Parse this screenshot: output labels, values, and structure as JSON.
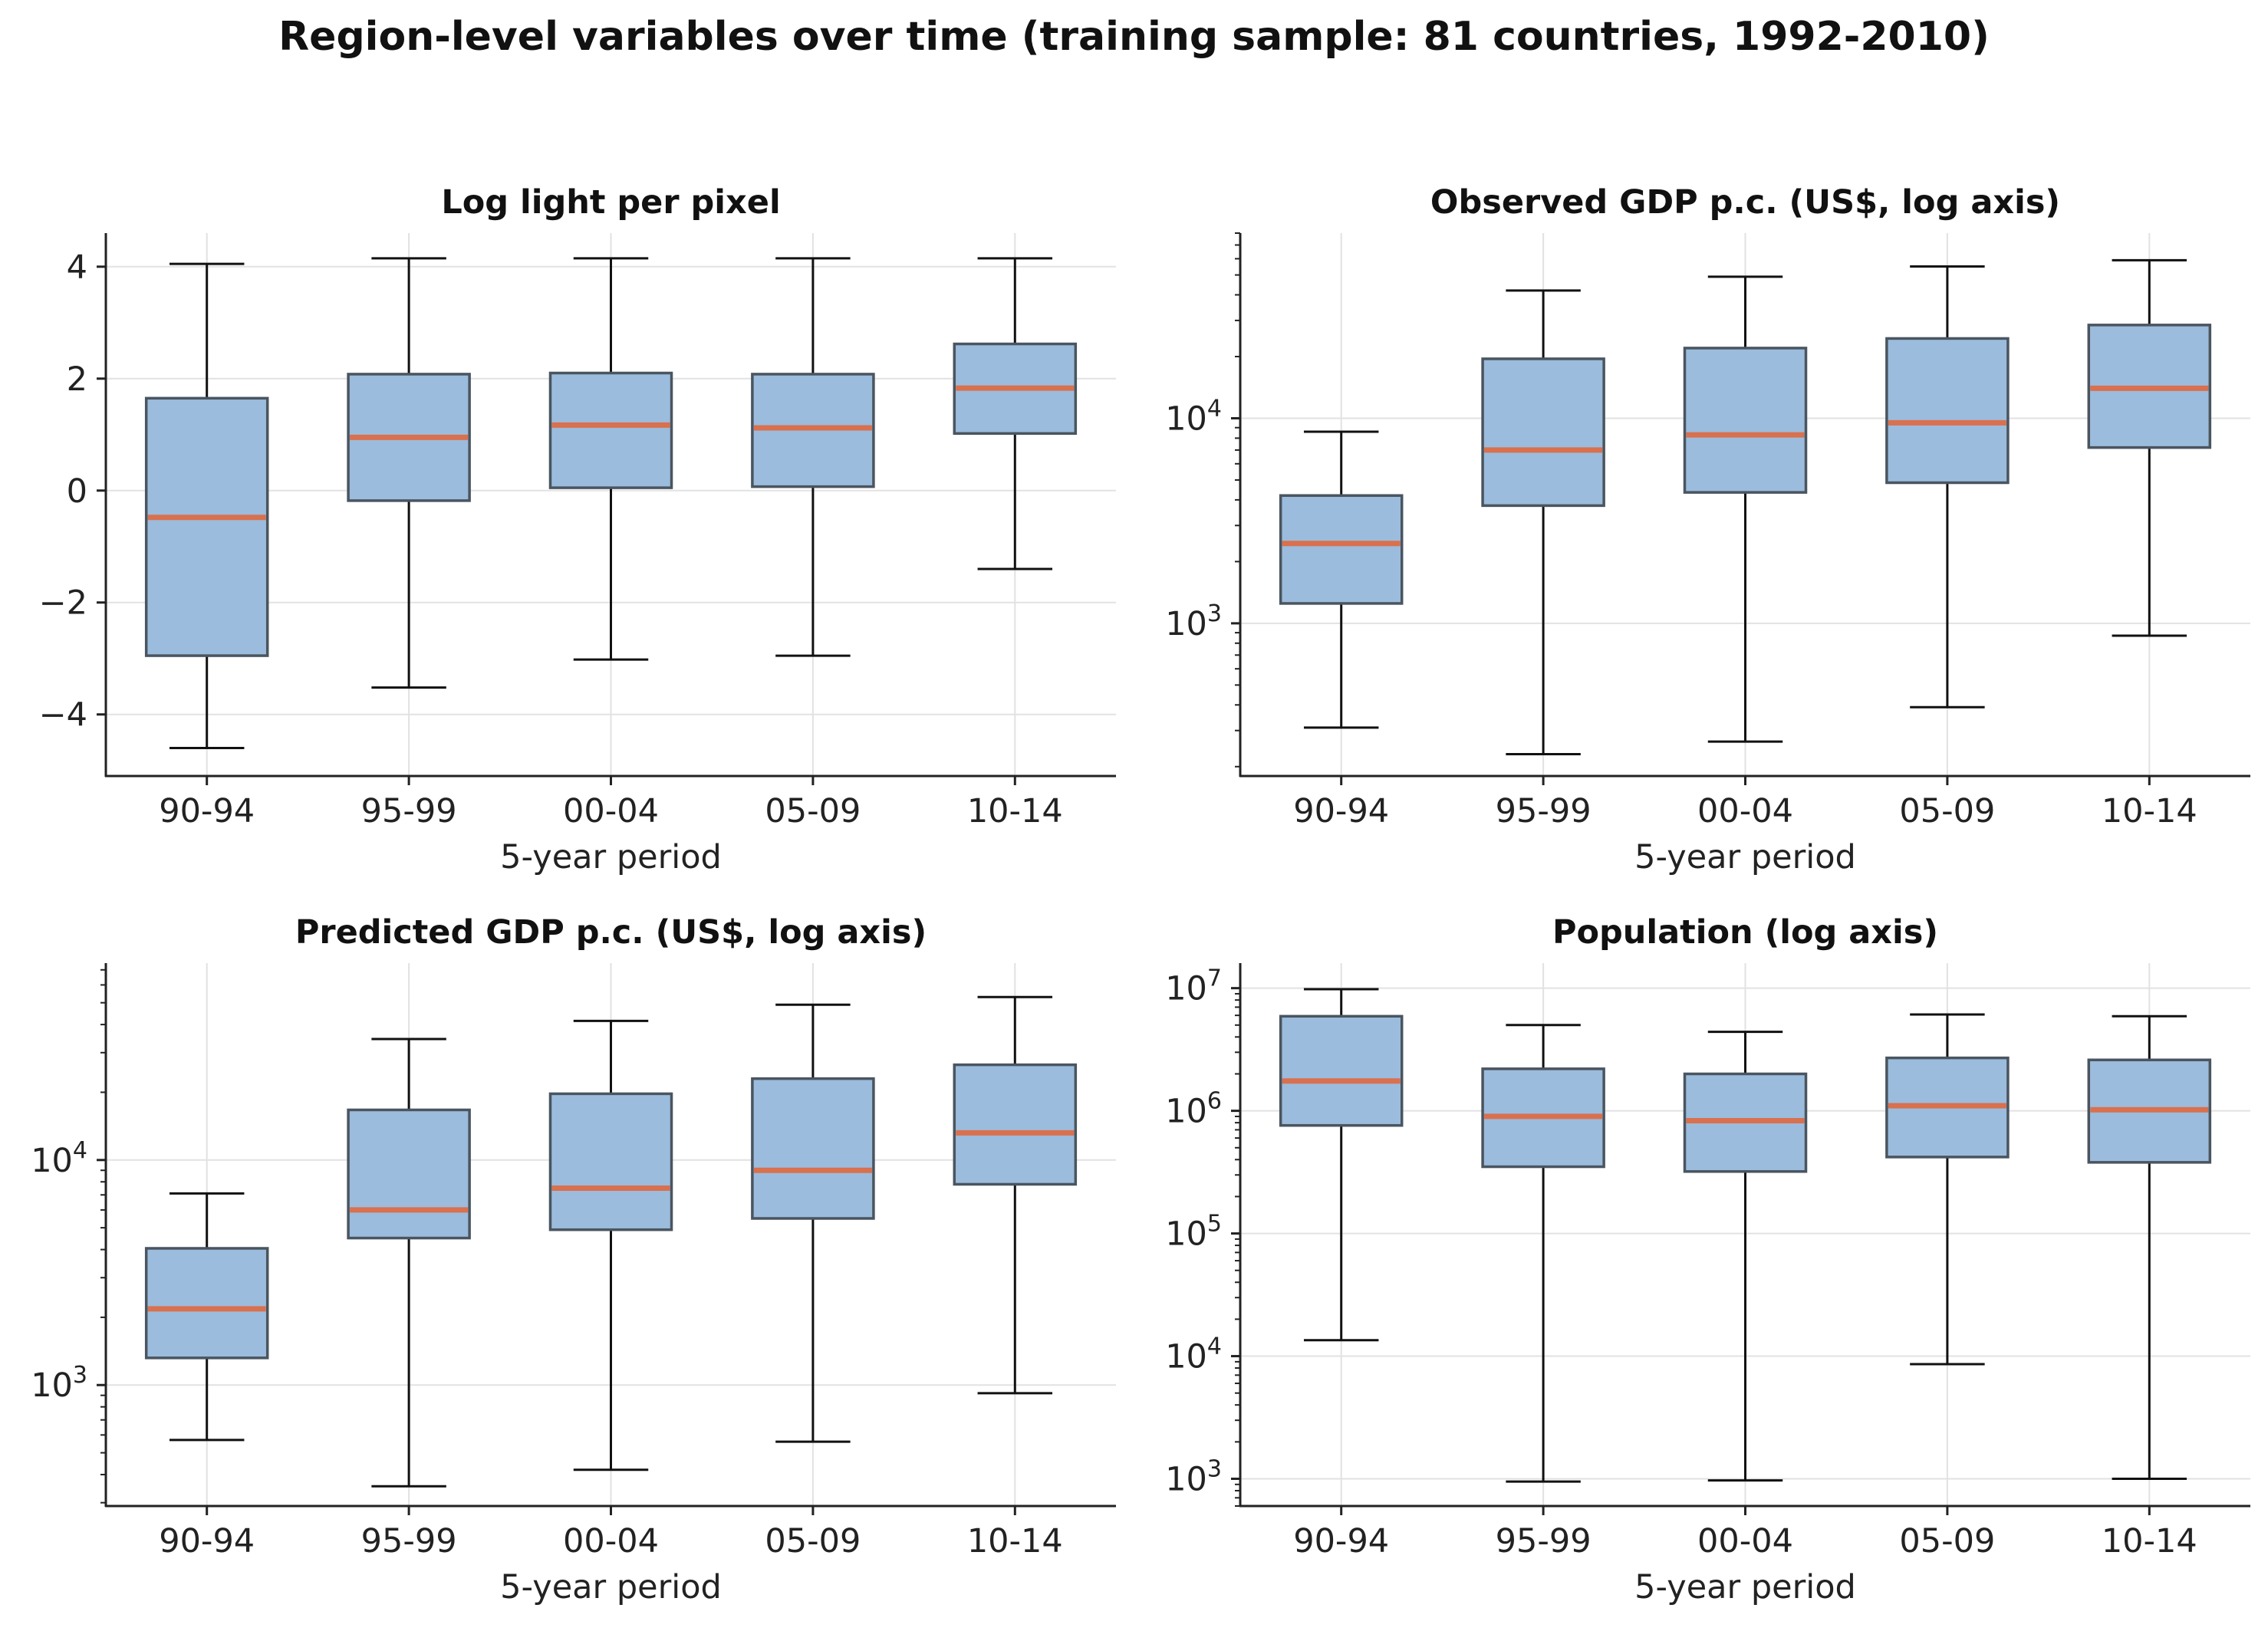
{
  "figure_title": "Region-level variables over time (training sample: 81 countries, 1992-2010)",
  "colors": {
    "box_fill": "#9bbcdc",
    "box_edge": "#4a5560",
    "median": "#d9704e",
    "whisker": "#111111",
    "grid": "#e2e2e2",
    "axis": "#222222"
  },
  "chart_data": [
    {
      "type": "box",
      "title": "Log light per pixel",
      "xlabel": "5-year period",
      "ylabel": "",
      "scale": "linear",
      "ylim": [
        -5.1,
        4.6
      ],
      "yticks": [
        -4,
        -2,
        0,
        2,
        4
      ],
      "ytick_labels": [
        "−4",
        "−2",
        "0",
        "2",
        "4"
      ],
      "categories": [
        "90-94",
        "95-99",
        "00-04",
        "05-09",
        "10-14"
      ],
      "boxes": [
        {
          "whislo": -4.6,
          "q1": -2.95,
          "med": -0.48,
          "q3": 1.65,
          "whishi": 4.05
        },
        {
          "whislo": -3.52,
          "q1": -0.18,
          "med": 0.95,
          "q3": 2.08,
          "whishi": 4.15
        },
        {
          "whislo": -3.02,
          "q1": 0.05,
          "med": 1.17,
          "q3": 2.1,
          "whishi": 4.15
        },
        {
          "whislo": -2.95,
          "q1": 0.07,
          "med": 1.12,
          "q3": 2.08,
          "whishi": 4.15
        },
        {
          "whislo": -1.4,
          "q1": 1.02,
          "med": 1.83,
          "q3": 2.62,
          "whishi": 4.15
        }
      ],
      "grid": true
    },
    {
      "type": "box",
      "title": "Observed GDP p.c. (US$, log axis)",
      "xlabel": "5-year period",
      "ylabel": "",
      "scale": "log",
      "ylim": [
        180,
        80000
      ],
      "ymajors": [
        1000,
        10000
      ],
      "ytick_labels": [
        [
          "10",
          "3"
        ],
        [
          "10",
          "4"
        ]
      ],
      "categories": [
        "90-94",
        "95-99",
        "00-04",
        "05-09",
        "10-14"
      ],
      "boxes": [
        {
          "whislo": 310,
          "q1": 1250,
          "med": 2450,
          "q3": 4200,
          "whishi": 8600
        },
        {
          "whislo": 230,
          "q1": 3750,
          "med": 7000,
          "q3": 19500,
          "whishi": 42000
        },
        {
          "whislo": 265,
          "q1": 4350,
          "med": 8300,
          "q3": 22000,
          "whishi": 49000
        },
        {
          "whislo": 390,
          "q1": 4850,
          "med": 9500,
          "q3": 24500,
          "whishi": 55000
        },
        {
          "whislo": 870,
          "q1": 7200,
          "med": 14000,
          "q3": 28500,
          "whishi": 59000
        }
      ],
      "grid": true
    },
    {
      "type": "box",
      "title": "Predicted GDP p.c. (US$, log axis)",
      "xlabel": "5-year period",
      "ylabel": "",
      "scale": "log",
      "ylim": [
        290,
        75000
      ],
      "ymajors": [
        1000,
        10000
      ],
      "ytick_labels": [
        [
          "10",
          "3"
        ],
        [
          "10",
          "4"
        ]
      ],
      "categories": [
        "90-94",
        "95-99",
        "00-04",
        "05-09",
        "10-14"
      ],
      "boxes": [
        {
          "whislo": 570,
          "q1": 1320,
          "med": 2180,
          "q3": 4050,
          "whishi": 7100
        },
        {
          "whislo": 355,
          "q1": 4500,
          "med": 6000,
          "q3": 16700,
          "whishi": 34500
        },
        {
          "whislo": 420,
          "q1": 4900,
          "med": 7500,
          "q3": 19700,
          "whishi": 41500
        },
        {
          "whislo": 560,
          "q1": 5500,
          "med": 9000,
          "q3": 23000,
          "whishi": 49000
        },
        {
          "whislo": 920,
          "q1": 7800,
          "med": 13200,
          "q3": 26500,
          "whishi": 53000
        }
      ],
      "grid": true
    },
    {
      "type": "box",
      "title": "Population (log axis)",
      "xlabel": "5-year period",
      "ylabel": "",
      "scale": "log",
      "ylim": [
        600,
        16000000
      ],
      "ymajors": [
        1000,
        10000,
        100000,
        1000000,
        10000000
      ],
      "ytick_labels": [
        [
          "10",
          "3"
        ],
        [
          "10",
          "4"
        ],
        [
          "10",
          "5"
        ],
        [
          "10",
          "6"
        ],
        [
          "10",
          "7"
        ]
      ],
      "categories": [
        "90-94",
        "95-99",
        "00-04",
        "05-09",
        "10-14"
      ],
      "boxes": [
        {
          "whislo": 13500,
          "q1": 760000,
          "med": 1750000,
          "q3": 5900000,
          "whishi": 9800000
        },
        {
          "whislo": 950,
          "q1": 350000,
          "med": 900000,
          "q3": 2200000,
          "whishi": 5000000
        },
        {
          "whislo": 970,
          "q1": 320000,
          "med": 830000,
          "q3": 2000000,
          "whishi": 4400000
        },
        {
          "whislo": 8600,
          "q1": 420000,
          "med": 1100000,
          "q3": 2700000,
          "whishi": 6100000
        },
        {
          "whislo": 1000,
          "q1": 380000,
          "med": 1020000,
          "q3": 2600000,
          "whishi": 5900000
        }
      ],
      "grid": true
    }
  ]
}
